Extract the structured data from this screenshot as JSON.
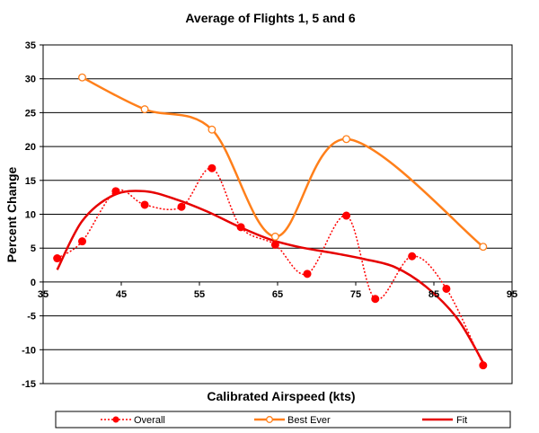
{
  "chart_data": {
    "type": "line",
    "title": "Average of Flights 1, 5 and 6",
    "xlabel": "Calibrated Airspeed (kts)",
    "ylabel": "Percent Change",
    "xlim": [
      35,
      95
    ],
    "ylim": [
      -15,
      35
    ],
    "xticks": [
      "35",
      "45",
      "55",
      "65",
      "75",
      "85",
      "95"
    ],
    "yticks": [
      "-15",
      "-10",
      "-5",
      "0",
      "5",
      "10",
      "15",
      "20",
      "25",
      "30",
      "35"
    ],
    "grid": "horizontal",
    "legend_position": "bottom",
    "series": [
      {
        "name": "Overall",
        "style": "dotted line with filled circle markers",
        "color": "#ff0000",
        "x": [
          36.8,
          40.0,
          44.3,
          48.0,
          52.7,
          56.6,
          60.3,
          64.7,
          68.8,
          73.8,
          77.5,
          82.2,
          86.6,
          91.3
        ],
        "y": [
          3.5,
          6.0,
          13.4,
          11.4,
          11.1,
          16.8,
          8.1,
          5.5,
          1.2,
          9.8,
          -2.5,
          3.8,
          -1.0,
          -12.3
        ]
      },
      {
        "name": "Best Ever",
        "style": "smooth line with hollow circle markers",
        "color": "#ff7f1a",
        "x": [
          40.0,
          48.0,
          56.6,
          64.7,
          73.8,
          91.3
        ],
        "y": [
          30.2,
          25.5,
          22.5,
          6.7,
          21.1,
          5.2
        ]
      },
      {
        "name": "Fit",
        "style": "smooth solid line",
        "color": "#e60000",
        "x": [
          36.8,
          40,
          44,
          48,
          52,
          56,
          60,
          64,
          68,
          72,
          76,
          80,
          84,
          88,
          91.3
        ],
        "y": [
          1.8,
          9.0,
          12.8,
          13.4,
          12.2,
          10.4,
          8.2,
          6.3,
          5.1,
          4.3,
          3.4,
          2.2,
          -0.7,
          -5.4,
          -11.9
        ]
      }
    ]
  }
}
